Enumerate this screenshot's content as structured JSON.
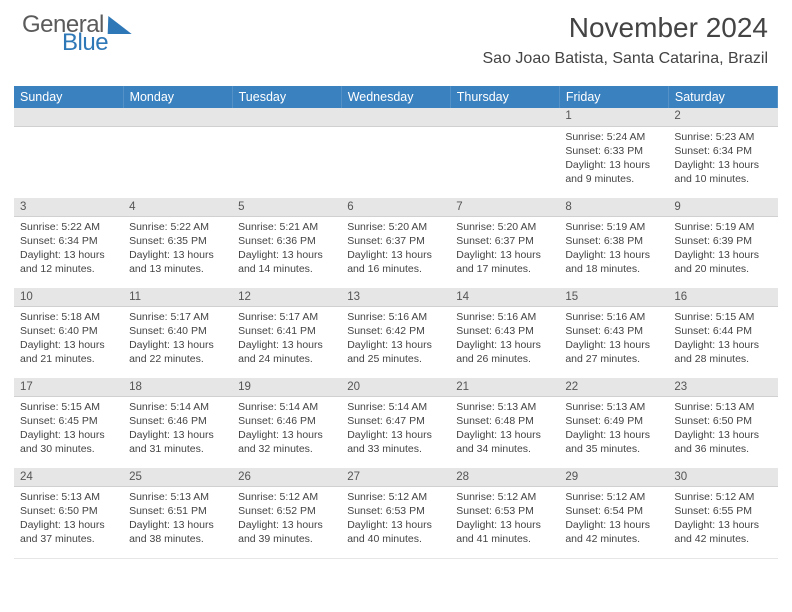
{
  "logo": {
    "line1": "General",
    "line2": "Blue"
  },
  "header": {
    "title": "November 2024",
    "subtitle": "Sao Joao Batista, Santa Catarina, Brazil"
  },
  "colors": {
    "header_bg": "#3a81bf",
    "daynum_bg": "#e6e6e6",
    "text": "#444444",
    "logo_gray": "#5b5b5b",
    "logo_blue": "#2f78b7"
  },
  "weekdays": [
    "Sunday",
    "Monday",
    "Tuesday",
    "Wednesday",
    "Thursday",
    "Friday",
    "Saturday"
  ],
  "weeks": [
    {
      "nums": [
        "",
        "",
        "",
        "",
        "",
        "1",
        "2"
      ],
      "cells": [
        "",
        "",
        "",
        "",
        "",
        "Sunrise: 5:24 AM\nSunset: 6:33 PM\nDaylight: 13 hours and 9 minutes.",
        "Sunrise: 5:23 AM\nSunset: 6:34 PM\nDaylight: 13 hours and 10 minutes."
      ]
    },
    {
      "nums": [
        "3",
        "4",
        "5",
        "6",
        "7",
        "8",
        "9"
      ],
      "cells": [
        "Sunrise: 5:22 AM\nSunset: 6:34 PM\nDaylight: 13 hours and 12 minutes.",
        "Sunrise: 5:22 AM\nSunset: 6:35 PM\nDaylight: 13 hours and 13 minutes.",
        "Sunrise: 5:21 AM\nSunset: 6:36 PM\nDaylight: 13 hours and 14 minutes.",
        "Sunrise: 5:20 AM\nSunset: 6:37 PM\nDaylight: 13 hours and 16 minutes.",
        "Sunrise: 5:20 AM\nSunset: 6:37 PM\nDaylight: 13 hours and 17 minutes.",
        "Sunrise: 5:19 AM\nSunset: 6:38 PM\nDaylight: 13 hours and 18 minutes.",
        "Sunrise: 5:19 AM\nSunset: 6:39 PM\nDaylight: 13 hours and 20 minutes."
      ]
    },
    {
      "nums": [
        "10",
        "11",
        "12",
        "13",
        "14",
        "15",
        "16"
      ],
      "cells": [
        "Sunrise: 5:18 AM\nSunset: 6:40 PM\nDaylight: 13 hours and 21 minutes.",
        "Sunrise: 5:17 AM\nSunset: 6:40 PM\nDaylight: 13 hours and 22 minutes.",
        "Sunrise: 5:17 AM\nSunset: 6:41 PM\nDaylight: 13 hours and 24 minutes.",
        "Sunrise: 5:16 AM\nSunset: 6:42 PM\nDaylight: 13 hours and 25 minutes.",
        "Sunrise: 5:16 AM\nSunset: 6:43 PM\nDaylight: 13 hours and 26 minutes.",
        "Sunrise: 5:16 AM\nSunset: 6:43 PM\nDaylight: 13 hours and 27 minutes.",
        "Sunrise: 5:15 AM\nSunset: 6:44 PM\nDaylight: 13 hours and 28 minutes."
      ]
    },
    {
      "nums": [
        "17",
        "18",
        "19",
        "20",
        "21",
        "22",
        "23"
      ],
      "cells": [
        "Sunrise: 5:15 AM\nSunset: 6:45 PM\nDaylight: 13 hours and 30 minutes.",
        "Sunrise: 5:14 AM\nSunset: 6:46 PM\nDaylight: 13 hours and 31 minutes.",
        "Sunrise: 5:14 AM\nSunset: 6:46 PM\nDaylight: 13 hours and 32 minutes.",
        "Sunrise: 5:14 AM\nSunset: 6:47 PM\nDaylight: 13 hours and 33 minutes.",
        "Sunrise: 5:13 AM\nSunset: 6:48 PM\nDaylight: 13 hours and 34 minutes.",
        "Sunrise: 5:13 AM\nSunset: 6:49 PM\nDaylight: 13 hours and 35 minutes.",
        "Sunrise: 5:13 AM\nSunset: 6:50 PM\nDaylight: 13 hours and 36 minutes."
      ]
    },
    {
      "nums": [
        "24",
        "25",
        "26",
        "27",
        "28",
        "29",
        "30"
      ],
      "cells": [
        "Sunrise: 5:13 AM\nSunset: 6:50 PM\nDaylight: 13 hours and 37 minutes.",
        "Sunrise: 5:13 AM\nSunset: 6:51 PM\nDaylight: 13 hours and 38 minutes.",
        "Sunrise: 5:12 AM\nSunset: 6:52 PM\nDaylight: 13 hours and 39 minutes.",
        "Sunrise: 5:12 AM\nSunset: 6:53 PM\nDaylight: 13 hours and 40 minutes.",
        "Sunrise: 5:12 AM\nSunset: 6:53 PM\nDaylight: 13 hours and 41 minutes.",
        "Sunrise: 5:12 AM\nSunset: 6:54 PM\nDaylight: 13 hours and 42 minutes.",
        "Sunrise: 5:12 AM\nSunset: 6:55 PM\nDaylight: 13 hours and 42 minutes."
      ]
    }
  ]
}
